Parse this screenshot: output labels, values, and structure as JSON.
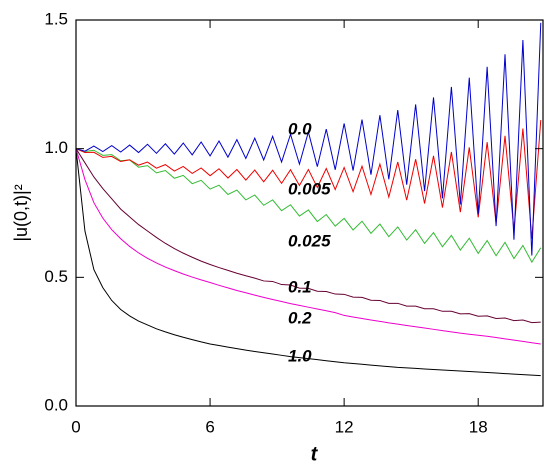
{
  "chart_data": {
    "type": "line",
    "xlabel": "t",
    "ylabel": "|u(0,t)|²",
    "xlim": [
      0,
      20.9
    ],
    "ylim": [
      0,
      1.5
    ],
    "xticks": [
      0,
      6,
      12,
      18
    ],
    "yticks": [
      {
        "value": 0,
        "label": "0.0"
      },
      {
        "value": 0.5,
        "label": "0.5"
      },
      {
        "value": 1,
        "label": "1.0"
      },
      {
        "value": 1.5,
        "label": "1.5"
      }
    ],
    "x": [
      0,
      0.4,
      0.8,
      1.2,
      1.6,
      2,
      2.4,
      2.8,
      3.2,
      3.6,
      4,
      4.4,
      4.8,
      5.2,
      5.6,
      6,
      6.4,
      6.8,
      7.2,
      7.6,
      8,
      8.4,
      8.8,
      9.2,
      9.6,
      10,
      10.4,
      10.8,
      11.2,
      11.6,
      12,
      12.4,
      12.8,
      13.2,
      13.6,
      14,
      14.4,
      14.8,
      15.2,
      15.6,
      16,
      16.4,
      16.8,
      17.2,
      17.6,
      18,
      18.4,
      18.8,
      19.2,
      19.6,
      20,
      20.4,
      20.8
    ],
    "series": [
      {
        "name": "1.0",
        "color": "#000000",
        "values": [
          1.0,
          0.68,
          0.53,
          0.46,
          0.41,
          0.375,
          0.35,
          0.33,
          0.315,
          0.3,
          0.288,
          0.277,
          0.267,
          0.258,
          0.249,
          0.241,
          0.235,
          0.229,
          0.223,
          0.217,
          0.212,
          0.207,
          0.202,
          0.197,
          0.192,
          0.188,
          0.184,
          0.18,
          0.176,
          0.172,
          0.168,
          0.165,
          0.162,
          0.159,
          0.156,
          0.153,
          0.15,
          0.148,
          0.146,
          0.144,
          0.142,
          0.14,
          0.138,
          0.136,
          0.134,
          0.132,
          0.13,
          0.128,
          0.126,
          0.124,
          0.122,
          0.12,
          0.118
        ]
      },
      {
        "name": "0.2",
        "color": "#ee00cc",
        "values": [
          1.0,
          0.88,
          0.79,
          0.73,
          0.685,
          0.65,
          0.62,
          0.595,
          0.574,
          0.556,
          0.54,
          0.526,
          0.513,
          0.501,
          0.49,
          0.48,
          0.469,
          0.459,
          0.449,
          0.44,
          0.431,
          0.422,
          0.414,
          0.406,
          0.398,
          0.391,
          0.384,
          0.377,
          0.37,
          0.363,
          0.352,
          0.346,
          0.34,
          0.334,
          0.329,
          0.323,
          0.318,
          0.313,
          0.308,
          0.303,
          0.298,
          0.293,
          0.288,
          0.283,
          0.279,
          0.275,
          0.271,
          0.266,
          0.261,
          0.256,
          0.251,
          0.246,
          0.241
        ]
      },
      {
        "name": "0.1",
        "color": "#660033",
        "values": [
          1.0,
          0.945,
          0.89,
          0.845,
          0.805,
          0.765,
          0.735,
          0.705,
          0.68,
          0.655,
          0.632,
          0.612,
          0.594,
          0.578,
          0.563,
          0.55,
          0.538,
          0.527,
          0.516,
          0.506,
          0.497,
          0.486,
          0.484,
          0.472,
          0.47,
          0.458,
          0.457,
          0.446,
          0.445,
          0.435,
          0.434,
          0.423,
          0.422,
          0.411,
          0.41,
          0.399,
          0.399,
          0.388,
          0.388,
          0.378,
          0.378,
          0.368,
          0.368,
          0.358,
          0.359,
          0.349,
          0.35,
          0.34,
          0.342,
          0.332,
          0.334,
          0.324,
          0.326
        ]
      },
      {
        "name": "0.025",
        "color": "#33bb33",
        "values": [
          1.0,
          0.989,
          0.994,
          0.974,
          0.977,
          0.953,
          0.956,
          0.928,
          0.934,
          0.906,
          0.915,
          0.885,
          0.896,
          0.864,
          0.877,
          0.843,
          0.858,
          0.822,
          0.839,
          0.801,
          0.82,
          0.78,
          0.801,
          0.759,
          0.782,
          0.738,
          0.762,
          0.717,
          0.744,
          0.699,
          0.729,
          0.684,
          0.718,
          0.671,
          0.707,
          0.658,
          0.696,
          0.645,
          0.685,
          0.632,
          0.674,
          0.619,
          0.663,
          0.606,
          0.652,
          0.593,
          0.643,
          0.584,
          0.636,
          0.573,
          0.624,
          0.559,
          0.615
        ]
      },
      {
        "name": "0.005",
        "color": "#ee0000",
        "values": [
          1.0,
          0.985,
          0.986,
          0.966,
          0.97,
          0.95,
          0.957,
          0.936,
          0.948,
          0.924,
          0.938,
          0.913,
          0.931,
          0.904,
          0.925,
          0.895,
          0.922,
          0.886,
          0.919,
          0.878,
          0.917,
          0.871,
          0.916,
          0.865,
          0.918,
          0.857,
          0.919,
          0.849,
          0.923,
          0.841,
          0.927,
          0.833,
          0.932,
          0.822,
          0.94,
          0.812,
          0.948,
          0.8,
          0.959,
          0.787,
          0.972,
          0.771,
          0.987,
          0.753,
          1.005,
          0.733,
          1.025,
          0.709,
          1.05,
          0.682,
          1.078,
          0.65,
          1.111
        ]
      },
      {
        "name": "0.0",
        "color": "#0000cc",
        "values": [
          1.0,
          0.99,
          1.01,
          0.989,
          1.012,
          0.987,
          1.014,
          0.985,
          1.017,
          0.982,
          1.019,
          0.979,
          1.022,
          0.976,
          1.026,
          0.972,
          1.03,
          0.967,
          1.035,
          0.962,
          1.041,
          0.956,
          1.048,
          0.948,
          1.056,
          0.94,
          1.065,
          0.93,
          1.076,
          0.918,
          1.098,
          0.915,
          1.113,
          0.899,
          1.13,
          0.881,
          1.15,
          0.86,
          1.172,
          0.835,
          1.199,
          0.807,
          1.24,
          0.783,
          1.276,
          0.745,
          1.318,
          0.699,
          1.367,
          0.646,
          1.422,
          0.585,
          1.489
        ]
      }
    ]
  }
}
